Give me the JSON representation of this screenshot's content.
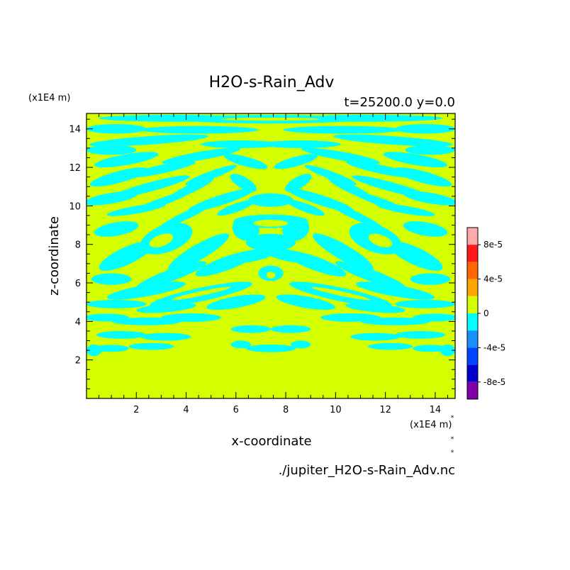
{
  "chart_data": {
    "type": "heatmap",
    "title": "H2O-s-Rain_Adv",
    "subtitle": "t=25200.0 y=0.0",
    "xlabel": "x-coordinate",
    "ylabel": "z-coordinate",
    "x_unit": "(x1E4 m)",
    "y_unit": "(x1E4 m)",
    "source_file": "./jupiter_H2O-s-Rain_Adv.nc",
    "xlim": [
      0,
      14.8
    ],
    "ylim": [
      0,
      14.8
    ],
    "x_ticks": [
      "2",
      "4",
      "6",
      "8",
      "10",
      "12",
      "14"
    ],
    "y_ticks": [
      "2",
      "4",
      "6",
      "8",
      "10",
      "12",
      "14"
    ],
    "x_tick_values": [
      2,
      4,
      6,
      8,
      10,
      12,
      14
    ],
    "y_tick_values": [
      2,
      4,
      6,
      8,
      10,
      12,
      14
    ],
    "grid": false,
    "colorbar": {
      "labels": [
        "8e-5",
        "4e-5",
        "0",
        "-4e-5",
        "-8e-5"
      ],
      "label_values": [
        8e-05,
        4e-05,
        0,
        -4e-05,
        -8e-05
      ],
      "levels": [
        0.0001,
        8e-05,
        6e-05,
        4e-05,
        2e-05,
        0,
        -2e-05,
        -4e-05,
        -6e-05,
        -8e-05,
        -0.0001
      ],
      "colors": [
        "#ffaaaa",
        "#ff1a1a",
        "#ff6600",
        "#ffa500",
        "#d4ff00",
        "#00ffff",
        "#1a90ff",
        "#0044ff",
        "#0000cc",
        "#7f00aa"
      ]
    },
    "field_colors": {
      "near_zero_positive": "#d4ff00",
      "slightly_negative": "#00ffff"
    },
    "note_marks": [
      "*",
      "*",
      "*"
    ]
  }
}
